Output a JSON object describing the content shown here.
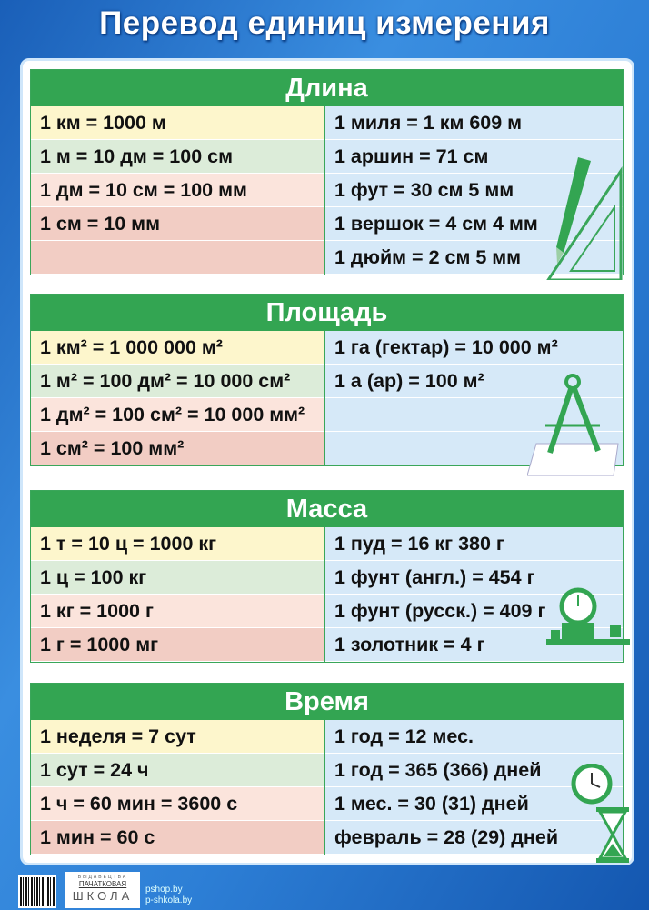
{
  "title": "Перевод единиц измерения",
  "sections": [
    {
      "heading": "Длина",
      "left": [
        "1 км = 1000 м",
        "1 м = 10 дм = 100 см",
        "1 дм = 10 см = 100 мм",
        "1 см = 10 мм",
        ""
      ],
      "right": [
        "1 миля = 1 км 609 м",
        "1 аршин = 71 см",
        "1 фут = 30 см 5 мм",
        "1 вершок = 4 см 4 мм",
        "1 дюйм = 2 см 5 мм"
      ],
      "icon": "pencil-ruler-icon"
    },
    {
      "heading": "Площадь",
      "left": [
        "1 км² = 1 000 000 м²",
        "1 м² = 100 дм² = 10 000 см²",
        "1 дм² = 100 см² = 10 000 мм²",
        "1 см² = 100 мм²"
      ],
      "right": [
        "1 га (гектар) = 10 000 м²",
        "1 а (ар) = 100 м²",
        "",
        ""
      ],
      "icon": "compass-icon"
    },
    {
      "heading": "Масса",
      "left": [
        "1 т = 10 ц = 1000 кг",
        "1 ц = 100 кг",
        "1 кг = 1000 г",
        "1 г = 1000 мг"
      ],
      "right": [
        "1 пуд = 16 кг 380 г",
        "1 фунт (англ.) = 454 г",
        "1 фунт (русск.) = 409 г",
        "1 золотник = 4 г"
      ],
      "icon": "scales-icon"
    },
    {
      "heading": "Время",
      "left": [
        "1 неделя = 7 сут",
        "1 сут = 24 ч",
        "1 ч = 60 мин = 3600 с",
        "1 мин = 60 с"
      ],
      "right": [
        "1 год = 12 мес.",
        "1 год = 365 (366) дней",
        "1 мес. =  30 (31) дней",
        "февраль =  28 (29) дней"
      ],
      "icon": "clock-hourglass-icon"
    }
  ],
  "footer": {
    "publisher_logo": "ВЫДАВЕЦТВА ПАЧАТКОВАЯ ШКОЛА",
    "logo_top": "ВЫДАВЕЦТВА",
    "logo_mid": "ПАЧАТКОВАЯ",
    "logo_bottom": "ШКОЛА",
    "link1": "pshop.by",
    "link2": "p-shkola.by"
  },
  "colors": {
    "green": "#33a552",
    "blue_bg": "#2d7fd6",
    "right_col": "#d6e9f8"
  }
}
